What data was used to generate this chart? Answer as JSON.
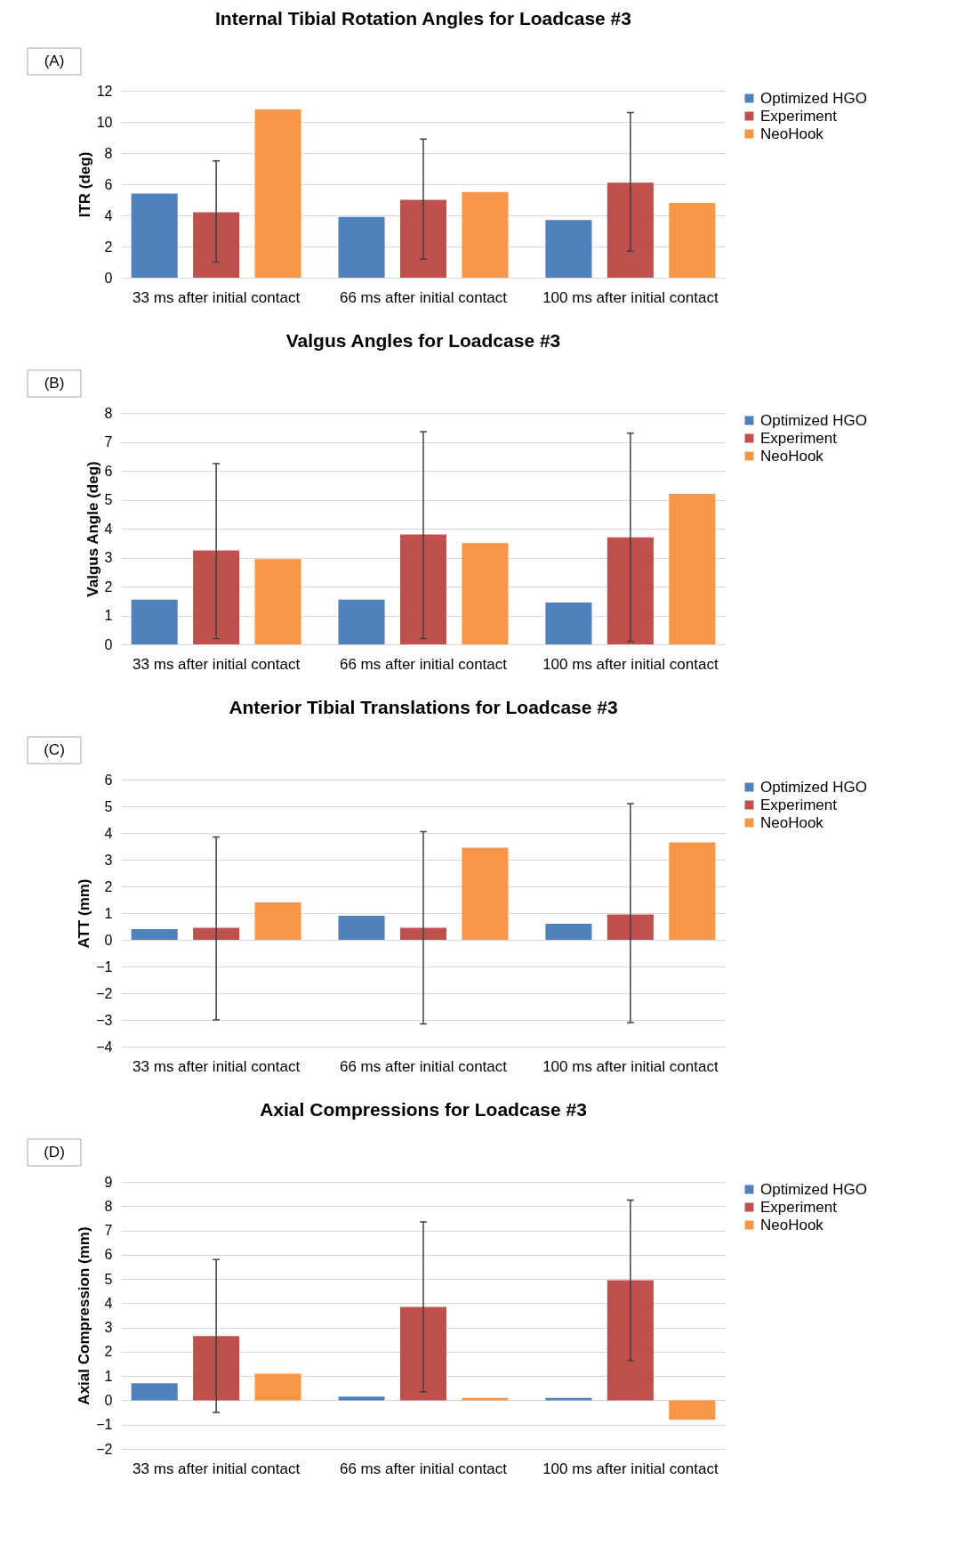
{
  "chart_data": [
    {
      "type": "bar",
      "title": "Internal Tibial Rotation Angles for Loadcase #3",
      "ylabel": "ITR (deg)",
      "annotations": [
        "(A)"
      ],
      "categories": [
        "33 ms after initial contact",
        "66 ms after initial contact",
        "100 ms after initial contact"
      ],
      "ylim": [
        0,
        12
      ],
      "yticks": [
        0,
        2,
        4,
        6,
        8,
        10,
        12
      ],
      "grid": "y",
      "legend": "right",
      "series": [
        {
          "name": "Optimized HGO",
          "color": "#4f81bd",
          "values": [
            5.4,
            3.9,
            3.7
          ]
        },
        {
          "name": "Experiment",
          "color": "#c0504d",
          "values": [
            4.2,
            5.0,
            6.1
          ],
          "errors": [
            [
              1.0,
              7.5
            ],
            [
              1.2,
              8.9
            ],
            [
              1.7,
              10.6
            ]
          ]
        },
        {
          "name": "NeoHook",
          "color": "#f79646",
          "values": [
            10.8,
            5.5,
            4.8
          ]
        }
      ]
    },
    {
      "type": "bar",
      "title": "Valgus Angles for Loadcase #3",
      "ylabel": "Valgus Angle (deg)",
      "annotations": [
        "(B)"
      ],
      "categories": [
        "33 ms after initial contact",
        "66 ms after initial contact",
        "100 ms after initial contact"
      ],
      "ylim": [
        0,
        8
      ],
      "yticks": [
        0,
        1,
        2,
        3,
        4,
        5,
        6,
        7,
        8
      ],
      "grid": "y",
      "legend": "right",
      "series": [
        {
          "name": "Optimized HGO",
          "color": "#4f81bd",
          "values": [
            1.55,
            1.55,
            1.45
          ]
        },
        {
          "name": "Experiment",
          "color": "#c0504d",
          "values": [
            3.25,
            3.8,
            3.7
          ],
          "errors": [
            [
              0.2,
              6.25
            ],
            [
              0.2,
              7.35
            ],
            [
              0.1,
              7.3
            ]
          ]
        },
        {
          "name": "NeoHook",
          "color": "#f79646",
          "values": [
            2.95,
            3.5,
            5.2
          ]
        }
      ]
    },
    {
      "type": "bar",
      "title": "Anterior Tibial Translations for Loadcase #3",
      "ylabel": "ATT (mm)",
      "annotations": [
        "(C)"
      ],
      "categories": [
        "33 ms after initial contact",
        "66 ms after initial contact",
        "100 ms after initial contact"
      ],
      "ylim": [
        -4,
        6
      ],
      "yticks": [
        -4,
        -3,
        -2,
        -1,
        0,
        1,
        2,
        3,
        4,
        5,
        6
      ],
      "grid": "y",
      "legend": "right",
      "series": [
        {
          "name": "Optimized HGO",
          "color": "#4f81bd",
          "values": [
            0.4,
            0.9,
            0.6
          ]
        },
        {
          "name": "Experiment",
          "color": "#c0504d",
          "values": [
            0.45,
            0.45,
            0.95
          ],
          "errors": [
            [
              -3.0,
              3.85
            ],
            [
              -3.15,
              4.05
            ],
            [
              -3.1,
              5.1
            ]
          ]
        },
        {
          "name": "NeoHook",
          "color": "#f79646",
          "values": [
            1.4,
            3.45,
            3.65
          ]
        }
      ]
    },
    {
      "type": "bar",
      "title": "Axial Compressions for Loadcase #3",
      "ylabel": "Axial Compression (mm)",
      "annotations": [
        "(D)"
      ],
      "categories": [
        "33 ms after initial contact",
        "66 ms after initial contact",
        "100 ms after initial contact"
      ],
      "ylim": [
        -2,
        9
      ],
      "yticks": [
        -2,
        -1,
        0,
        1,
        2,
        3,
        4,
        5,
        6,
        7,
        8,
        9
      ],
      "grid": "y",
      "legend": "right",
      "series": [
        {
          "name": "Optimized HGO",
          "color": "#4f81bd",
          "values": [
            0.7,
            0.15,
            0.1
          ]
        },
        {
          "name": "Experiment",
          "color": "#c0504d",
          "values": [
            2.65,
            3.85,
            4.95
          ],
          "errors": [
            [
              -0.5,
              5.8
            ],
            [
              0.35,
              7.35
            ],
            [
              1.65,
              8.25
            ]
          ]
        },
        {
          "name": "NeoHook",
          "color": "#f79646",
          "values": [
            1.1,
            0.1,
            -0.8
          ]
        }
      ]
    }
  ]
}
